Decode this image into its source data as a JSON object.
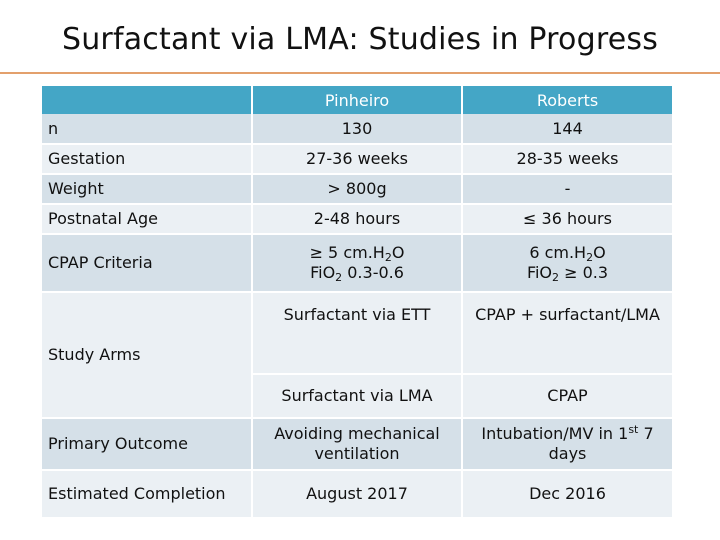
{
  "title": "Surfactant via LMA: Studies in Progress",
  "colors": {
    "header": "#44a6c6",
    "row_dark": "#d5e0e8",
    "row_light": "#ebf0f4",
    "rule": "#e3a06c"
  },
  "table": {
    "headers": [
      "",
      "Pinheiro",
      "Roberts"
    ],
    "rows": {
      "n": {
        "label": "n",
        "pinheiro": "130",
        "roberts": "144"
      },
      "gestation": {
        "label": "Gestation",
        "pinheiro": "27-36 weeks",
        "roberts": "28-35 weeks"
      },
      "weight": {
        "label": "Weight",
        "pinheiro": "> 800g",
        "roberts": "-"
      },
      "postnatal_age": {
        "label": "Postnatal Age",
        "pinheiro": "2-48 hours",
        "roberts": "≤ 36 hours"
      },
      "cpap_criteria": {
        "label": "CPAP Criteria",
        "pinheiro_line1_pre": "≥ 5 cm.H",
        "pinheiro_line1_sub": "2",
        "pinheiro_line1_post": "O",
        "pinheiro_line2_pre": "FiO",
        "pinheiro_line2_sub": "2",
        "pinheiro_line2_post": " 0.3-0.6",
        "roberts_line1_pre": "6 cm.H",
        "roberts_line1_sub": "2",
        "roberts_line1_post": "O",
        "roberts_line2_pre": "FiO",
        "roberts_line2_sub": "2",
        "roberts_line2_post": " ≥ 0.3"
      },
      "study_arms": {
        "label": "Study Arms",
        "pinheiro_arm1": "Surfactant via ETT",
        "roberts_arm1": "CPAP + surfactant/LMA",
        "pinheiro_arm2": "Surfactant via LMA",
        "roberts_arm2": "CPAP"
      },
      "primary_outcome": {
        "label": "Primary Outcome",
        "pinheiro": "Avoiding mechanical ventilation",
        "roberts_pre": "Intubation/MV in 1",
        "roberts_sup": "st",
        "roberts_post": " 7 days"
      },
      "estimated_completion": {
        "label": "Estimated Completion",
        "pinheiro": "August 2017",
        "roberts": "Dec 2016"
      }
    }
  }
}
